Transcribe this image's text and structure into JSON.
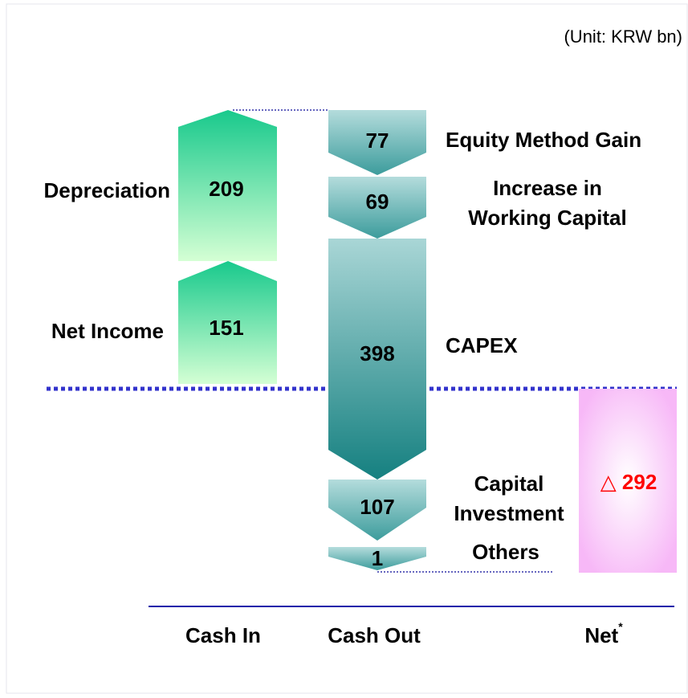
{
  "unit": "(Unit: KRW bn)",
  "cash_in": [
    {
      "label": "Depreciation",
      "value": "209"
    },
    {
      "label": "Net Income",
      "value": "151"
    }
  ],
  "cash_out": [
    {
      "label": [
        "Equity Method Gain"
      ],
      "value": "77"
    },
    {
      "label": [
        "Increase in",
        "Working Capital"
      ],
      "value": "69"
    },
    {
      "label": [
        "CAPEX"
      ],
      "value": "398"
    },
    {
      "label": [
        "Capital",
        "Investment"
      ],
      "value": "107"
    },
    {
      "label": [
        "Others"
      ],
      "value": "1"
    }
  ],
  "net": {
    "value": "△ 292"
  },
  "columns": [
    "Cash In",
    "Cash Out",
    "Net"
  ],
  "footnote_mark": "*"
}
